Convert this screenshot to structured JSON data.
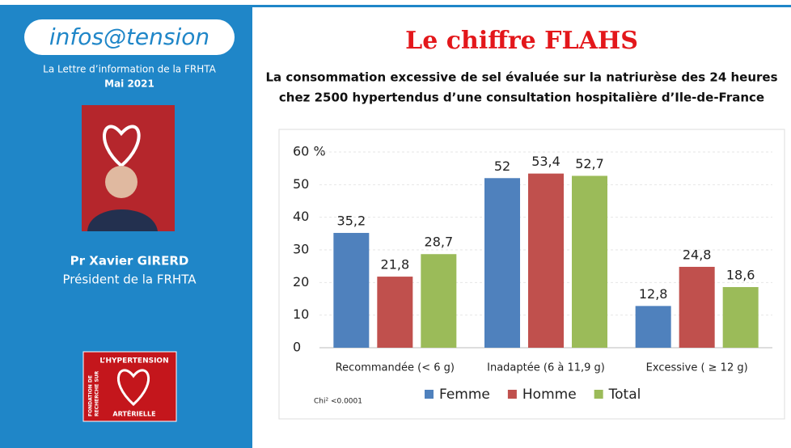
{
  "sidebar": {
    "brand": "infos@tension",
    "newsletter": "La Lettre d’information de la FRHTA",
    "date": "Mai 2021",
    "author": "Pr Xavier GIRERD",
    "role": "Président de la FRHTA",
    "logo": {
      "top": "L’HYPERTENSION",
      "side_lines": [
        "FONDATION DE",
        "RECHERCHE SUR"
      ],
      "bottom": "ARTÉRIELLE"
    }
  },
  "header": {
    "title": "Le chiffre FLAHS",
    "subtitle_lines": [
      "La consommation excessive de sel évaluée sur la natriurèse des 24 heures",
      "chez 2500 hypertendus d’une consultation hospitalière d’Ile-de-France"
    ]
  },
  "chart_data": {
    "type": "bar",
    "categories": [
      "Recommandée (< 6 g)",
      "Inadaptée (6 à 11,9 g)",
      "Excessive ( ≥ 12 g)"
    ],
    "series": [
      {
        "name": "Femme",
        "color": "#4f81bd",
        "values": [
          35.2,
          52,
          12.8
        ],
        "value_labels": [
          "35,2",
          "52",
          "12,8"
        ]
      },
      {
        "name": "Homme",
        "color": "#c0504d",
        "values": [
          21.8,
          53.4,
          24.8
        ],
        "value_labels": [
          "21,8",
          "53,4",
          "24,8"
        ]
      },
      {
        "name": "Total",
        "color": "#9bbb59",
        "values": [
          28.7,
          52.7,
          18.6
        ],
        "value_labels": [
          "28,7",
          "52,7",
          "18,6"
        ]
      }
    ],
    "ylim": [
      0,
      60
    ],
    "yticks": [
      0,
      10,
      20,
      30,
      40,
      50,
      {
        "value": 60,
        "label": "60 %"
      }
    ],
    "grid": true,
    "legend": "bottom",
    "annotation": "Chi² <0.0001"
  }
}
